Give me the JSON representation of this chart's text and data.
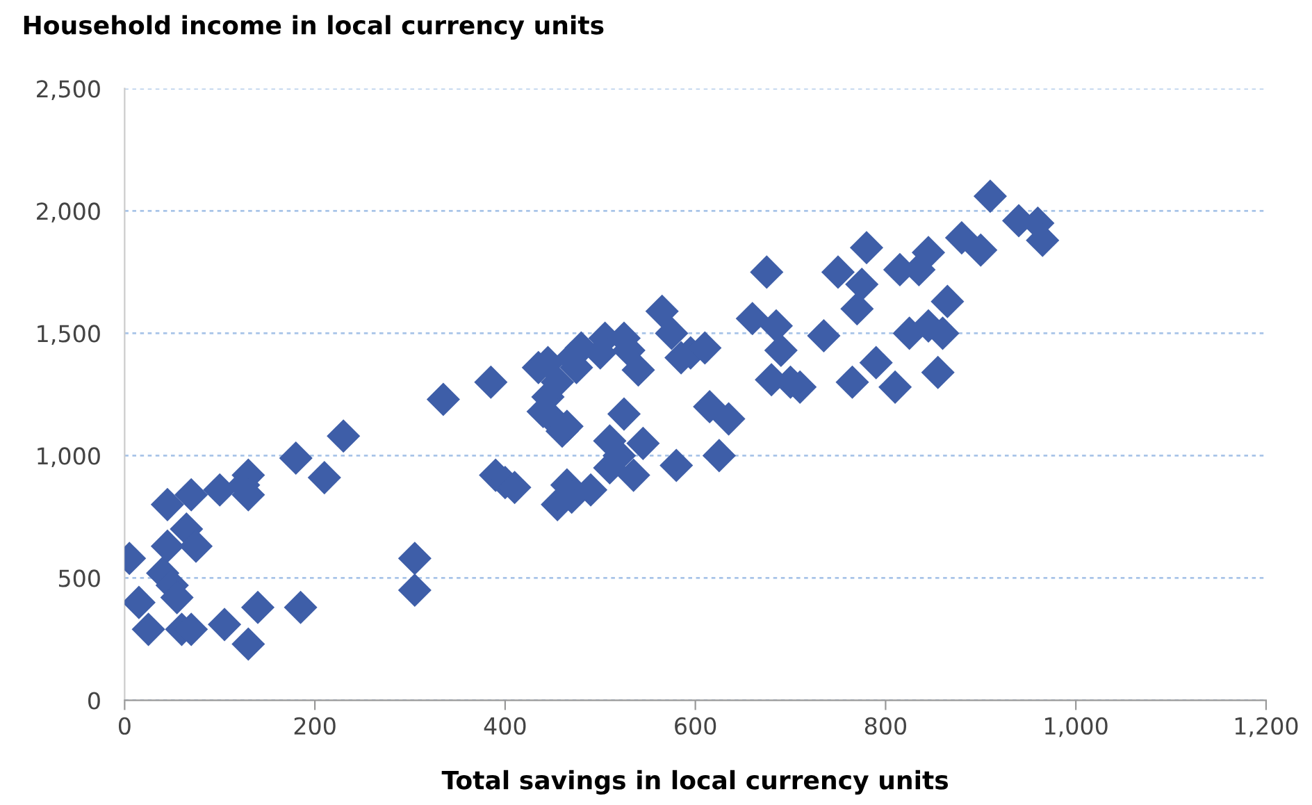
{
  "chart_data": {
    "type": "scatter",
    "ylabel": "Household income in local currency units",
    "xlabel": "Total savings in local currency units",
    "x": [
      5,
      15,
      25,
      40,
      45,
      45,
      50,
      55,
      60,
      65,
      70,
      75,
      70,
      100,
      105,
      125,
      130,
      130,
      130,
      140,
      180,
      185,
      210,
      230,
      305,
      305,
      335,
      385,
      390,
      400,
      410,
      435,
      445,
      440,
      445,
      450,
      455,
      460,
      465,
      470,
      475,
      455,
      465,
      470,
      490,
      480,
      500,
      505,
      510,
      510,
      520,
      525,
      525,
      530,
      535,
      540,
      545,
      565,
      575,
      580,
      585,
      595,
      610,
      615,
      625,
      635,
      660,
      675,
      680,
      685,
      690,
      700,
      710,
      735,
      750,
      765,
      770,
      775,
      780,
      790,
      810,
      815,
      825,
      835,
      845,
      845,
      855,
      860,
      865,
      880,
      900,
      910,
      940,
      960,
      965
    ],
    "series": [
      {
        "color": "#3e5ea8",
        "values": [
          580,
          400,
          290,
          520,
          800,
          630,
          470,
          420,
          290,
          700,
          840,
          630,
          290,
          860,
          310,
          880,
          920,
          840,
          230,
          380,
          990,
          380,
          910,
          1080,
          580,
          450,
          1230,
          1300,
          920,
          890,
          870,
          1360,
          1380,
          1180,
          1240,
          1150,
          1300,
          1100,
          1120,
          1400,
          1360,
          800,
          880,
          830,
          860,
          1440,
          1420,
          1480,
          950,
          1060,
          1000,
          1170,
          1480,
          1430,
          920,
          1350,
          1050,
          1590,
          1500,
          960,
          1400,
          1420,
          1440,
          1200,
          1000,
          1150,
          1560,
          1750,
          1310,
          1530,
          1430,
          1300,
          1280,
          1490,
          1750,
          1300,
          1600,
          1700,
          1850,
          1380,
          1280,
          1760,
          1500,
          1760,
          1830,
          1530,
          1340,
          1500,
          1630,
          1890,
          1840,
          2060,
          1960,
          1950,
          1880
        ]
      }
    ],
    "marker": "diamond",
    "xlim": [
      0,
      1200
    ],
    "xticks": [
      {
        "value": 0,
        "label": "0"
      },
      {
        "value": 200,
        "label": "200"
      },
      {
        "value": 400,
        "label": "400"
      },
      {
        "value": 600,
        "label": "600"
      },
      {
        "value": 800,
        "label": "800"
      },
      {
        "value": 1000,
        "label": "1,000"
      },
      {
        "value": 1200,
        "label": "1,200"
      }
    ],
    "ylim": [
      0,
      2500
    ],
    "yticks": [
      {
        "value": 0,
        "label": "0"
      },
      {
        "value": 500,
        "label": "500"
      },
      {
        "value": 1000,
        "label": "1,000"
      },
      {
        "value": 1500,
        "label": "1,500"
      },
      {
        "value": 2000,
        "label": "2,000"
      },
      {
        "value": 2500,
        "label": "2,500"
      }
    ],
    "grid": "y"
  }
}
